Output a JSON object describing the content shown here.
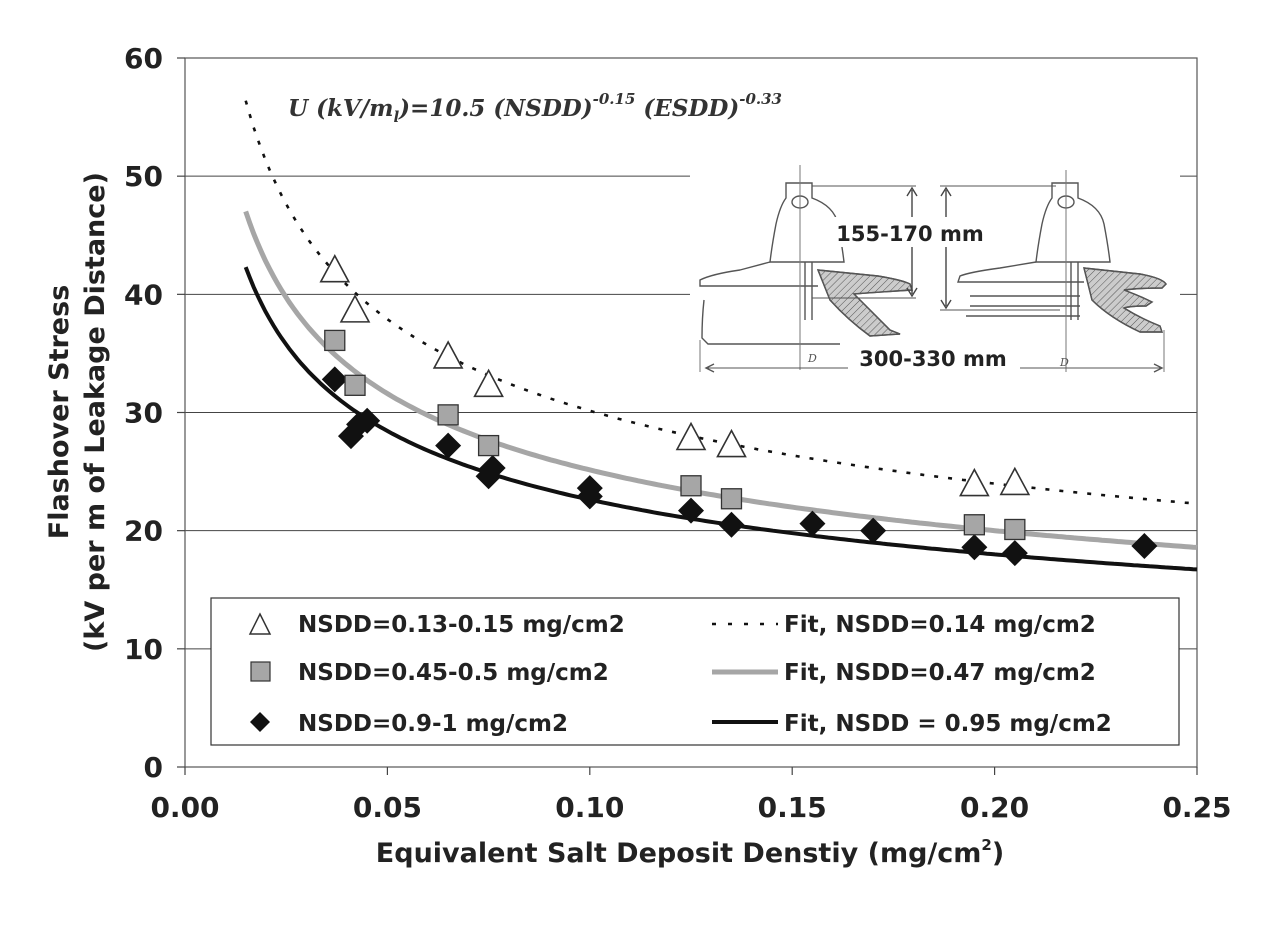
{
  "chart_data": {
    "type": "scatter",
    "xlabel": "Equivalent Salt Deposit Denstiy (mg/cm",
    "xlabel_sup": "2",
    "xlabel_end": ")",
    "ylabel_line1": "Flashover Stress",
    "ylabel_line2": "(kV per m of Leakage Distance)",
    "xlim": [
      0,
      0.25
    ],
    "ylim": [
      0,
      60
    ],
    "xticks": [
      "0.00",
      "0.05",
      "0.10",
      "0.15",
      "0.20",
      "0.25"
    ],
    "yticks": [
      "0",
      "10",
      "20",
      "30",
      "40",
      "50",
      "60"
    ],
    "grid": "horizontal",
    "legend_position": "bottom",
    "formula": {
      "lhs": "U (kV/m",
      "sub": "l",
      "mid1": ")=10.5 (NSDD)",
      "exp1": "-0.15",
      "mid2": " (ESDD)",
      "exp2": "-0.33"
    },
    "fit": {
      "coefficient": 10.5,
      "nsdd_exponent": -0.15,
      "esdd_exponent": -0.33,
      "x_start": 0.015,
      "x_end": 0.25
    },
    "series": [
      {
        "name": "NSDD=0.13-0.15 mg/cm2",
        "marker": "triangle",
        "color": "#ffffff",
        "points": [
          [
            0.037,
            42.0
          ],
          [
            0.042,
            38.6
          ],
          [
            0.065,
            34.7
          ],
          [
            0.075,
            32.3
          ],
          [
            0.125,
            27.8
          ],
          [
            0.135,
            27.2
          ],
          [
            0.195,
            23.9
          ],
          [
            0.205,
            24.0
          ]
        ]
      },
      {
        "name": "NSDD=0.45-0.5 mg/cm2",
        "marker": "square",
        "color": "#a6a6a6",
        "points": [
          [
            0.037,
            36.1
          ],
          [
            0.042,
            32.3
          ],
          [
            0.065,
            29.8
          ],
          [
            0.075,
            27.2
          ],
          [
            0.125,
            23.8
          ],
          [
            0.135,
            22.7
          ],
          [
            0.195,
            20.5
          ],
          [
            0.205,
            20.1
          ]
        ]
      },
      {
        "name": "NSDD=0.9-1 mg/cm2",
        "marker": "diamond",
        "color": "#111111",
        "points": [
          [
            0.037,
            32.8
          ],
          [
            0.041,
            28.0
          ],
          [
            0.043,
            29.0
          ],
          [
            0.045,
            29.3
          ],
          [
            0.065,
            27.2
          ],
          [
            0.075,
            24.6
          ],
          [
            0.076,
            25.3
          ],
          [
            0.1,
            23.6
          ],
          [
            0.1,
            22.9
          ],
          [
            0.125,
            21.7
          ],
          [
            0.135,
            20.5
          ],
          [
            0.155,
            20.6
          ],
          [
            0.17,
            20.0
          ],
          [
            0.195,
            18.6
          ],
          [
            0.205,
            18.1
          ],
          [
            0.237,
            18.7
          ]
        ]
      }
    ],
    "fits": [
      {
        "name": "Fit, NSDD=0.14 mg/cm2",
        "nsdd": 0.14,
        "style": "dotted",
        "color": "#111111"
      },
      {
        "name": "Fit, NSDD=0.47 mg/cm2",
        "nsdd": 0.47,
        "style": "solid",
        "color": "#a6a6a6"
      },
      {
        "name": "Fit, NSDD = 0.95 mg/cm2",
        "nsdd": 0.95,
        "style": "solid",
        "color": "#111111"
      }
    ]
  },
  "insulator": {
    "height_label": "155-170 mm",
    "diameter_label": "300-330 mm",
    "d_mark": "D"
  }
}
